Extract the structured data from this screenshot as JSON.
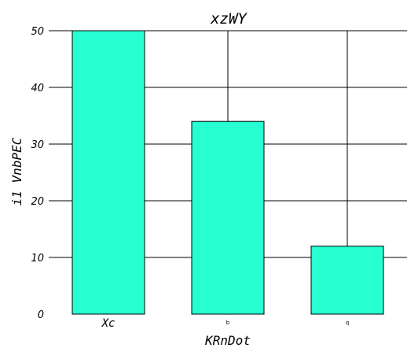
{
  "chart_data": {
    "type": "bar",
    "title": "xzWY",
    "xlabel": "KRnDot",
    "ylabel": "i1 VnbPEC",
    "categories": [
      "Xc",
      "b",
      "q"
    ],
    "values": [
      50,
      34,
      12
    ],
    "ylim": [
      0,
      50
    ],
    "yticks": [
      "0",
      "10",
      "20",
      "30",
      "40",
      "50"
    ],
    "grid": true,
    "bar_color": "#26ffd1",
    "legend": "none"
  }
}
